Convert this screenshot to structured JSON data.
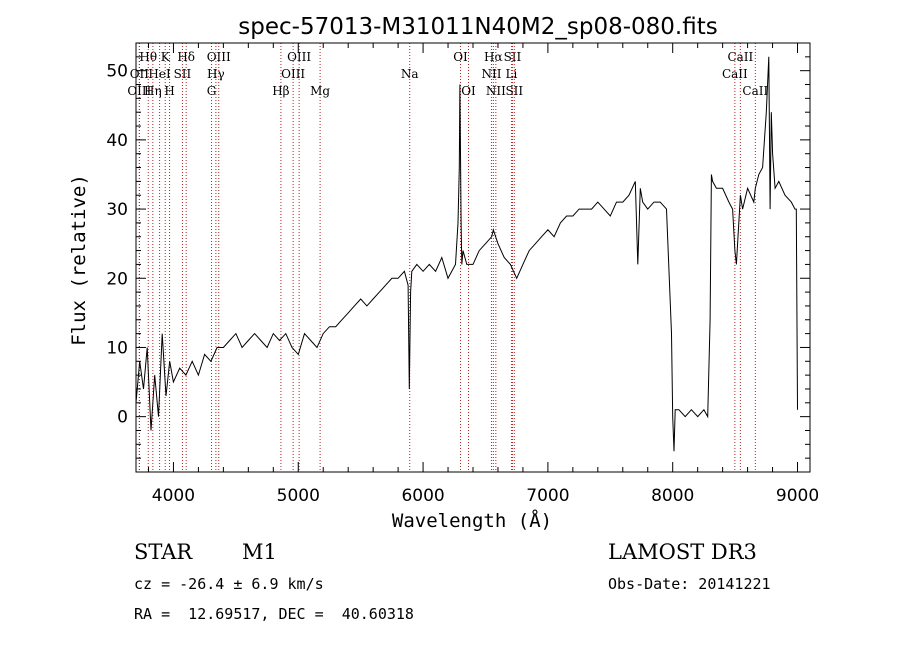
{
  "chart_data": {
    "type": "line",
    "title": "spec-57013-M31011N40M2_sp08-080.fits",
    "xlabel": "Wavelength (Å)",
    "ylabel": "Flux (relative)",
    "xlim": [
      3700,
      9100
    ],
    "ylim": [
      -8,
      54
    ],
    "x_ticks": [
      4000,
      5000,
      6000,
      7000,
      8000,
      9000
    ],
    "y_ticks": [
      0,
      10,
      20,
      30,
      40,
      50
    ],
    "grid": false,
    "series": [
      {
        "x": [
          3700,
          3730,
          3760,
          3790,
          3820,
          3850,
          3880,
          3910,
          3940,
          3970,
          4000,
          4050,
          4100,
          4150,
          4200,
          4250,
          4300,
          4350,
          4400,
          4450,
          4500,
          4550,
          4600,
          4650,
          4700,
          4750,
          4800,
          4850,
          4900,
          4950,
          5000,
          5050,
          5100,
          5150,
          5200,
          5250,
          5300,
          5350,
          5400,
          5450,
          5500,
          5550,
          5600,
          5650,
          5700,
          5750,
          5800,
          5850,
          5880,
          5890,
          5900,
          5910,
          5950,
          6000,
          6050,
          6100,
          6150,
          6200,
          6230,
          6260,
          6280,
          6290,
          6295,
          6300,
          6305,
          6310,
          6320,
          6350,
          6400,
          6450,
          6500,
          6550,
          6563,
          6600,
          6650,
          6700,
          6750,
          6800,
          6850,
          6900,
          6950,
          7000,
          7050,
          7100,
          7150,
          7200,
          7250,
          7300,
          7350,
          7400,
          7450,
          7500,
          7550,
          7600,
          7650,
          7700,
          7720,
          7740,
          7760,
          7800,
          7850,
          7900,
          7950,
          7990,
          8000,
          8010,
          8020,
          8050,
          8100,
          8150,
          8200,
          8250,
          8280,
          8300,
          8310,
          8320,
          8350,
          8400,
          8450,
          8480,
          8498,
          8510,
          8542,
          8560,
          8600,
          8650,
          8662,
          8690,
          8720,
          8750,
          8770,
          8780,
          8790,
          8800,
          8820,
          8850,
          8900,
          8950,
          8980,
          8990,
          9000
        ],
        "y": [
          2,
          8,
          4,
          10,
          -2,
          6,
          0,
          12,
          3,
          8,
          5,
          7,
          6,
          8,
          6,
          9,
          8,
          10,
          10,
          11,
          12,
          10,
          11,
          12,
          11,
          10,
          12,
          11,
          12,
          10,
          9,
          12,
          11,
          10,
          12,
          13,
          13,
          14,
          15,
          16,
          17,
          16,
          17,
          18,
          19,
          20,
          20,
          21,
          19,
          4,
          18,
          21,
          22,
          21,
          22,
          21,
          23,
          20,
          21,
          22,
          28,
          36,
          48,
          38,
          28,
          22,
          24,
          22,
          22,
          24,
          25,
          26,
          27,
          25,
          23,
          22,
          20,
          22,
          24,
          25,
          26,
          27,
          26,
          28,
          29,
          29,
          30,
          30,
          30,
          31,
          30,
          29,
          31,
          31,
          32,
          34,
          22,
          33,
          31,
          30,
          31,
          31,
          30,
          12,
          0,
          -5,
          1,
          1,
          0,
          1,
          0,
          1,
          0,
          14,
          35,
          34,
          33,
          33,
          31,
          30,
          24,
          22,
          32,
          30,
          33,
          31,
          33,
          35,
          36,
          44,
          52,
          30,
          44,
          38,
          33,
          34,
          32,
          31,
          30,
          30,
          1
        ]
      }
    ],
    "line_markers": [
      {
        "label": "Hθ",
        "wavelength": 3798,
        "row": 1
      },
      {
        "label": "OII",
        "wavelength": 3727,
        "row": 2
      },
      {
        "label": "OIII",
        "wavelength": 3727,
        "row": 3
      },
      {
        "label": "K",
        "wavelength": 3934,
        "row": 1
      },
      {
        "label": "H",
        "wavelength": 3969,
        "row": 3
      },
      {
        "label": "HeI",
        "wavelength": 3889,
        "row": 2
      },
      {
        "label": "Hη",
        "wavelength": 3835,
        "row": 3
      },
      {
        "label": "SII",
        "wavelength": 4072,
        "row": 2
      },
      {
        "label": "Hδ",
        "wavelength": 4102,
        "row": 1
      },
      {
        "label": "OIII",
        "wavelength": 4363,
        "row": 1
      },
      {
        "label": "Hγ",
        "wavelength": 4340,
        "row": 2
      },
      {
        "label": "G",
        "wavelength": 4305,
        "row": 3
      },
      {
        "label": "Hβ",
        "wavelength": 4861,
        "row": 3
      },
      {
        "label": "OIII",
        "wavelength": 4959,
        "row": 2
      },
      {
        "label": "OIII",
        "wavelength": 5007,
        "row": 1
      },
      {
        "label": "Mg",
        "wavelength": 5175,
        "row": 3
      },
      {
        "label": "Na",
        "wavelength": 5893,
        "row": 2
      },
      {
        "label": "OI",
        "wavelength": 6300,
        "row": 1
      },
      {
        "label": "OI",
        "wavelength": 6364,
        "row": 3
      },
      {
        "label": "Hα",
        "wavelength": 6563,
        "row": 1
      },
      {
        "label": "NII",
        "wavelength": 6548,
        "row": 2
      },
      {
        "label": "NII",
        "wavelength": 6583,
        "row": 3
      },
      {
        "label": "SII",
        "wavelength": 6716,
        "row": 1
      },
      {
        "label": "Li",
        "wavelength": 6708,
        "row": 2
      },
      {
        "label": "SII",
        "wavelength": 6731,
        "row": 3
      },
      {
        "label": "CaII",
        "wavelength": 8542,
        "row": 1
      },
      {
        "label": "CaII",
        "wavelength": 8498,
        "row": 2
      },
      {
        "label": "CaII",
        "wavelength": 8662,
        "row": 3
      }
    ]
  },
  "colors": {
    "spectrum": "#000000",
    "marker_lines": "#b22222"
  },
  "info": {
    "object_class": "STAR",
    "subclass": "M1",
    "survey": "LAMOST DR3",
    "redshift": "cz = -26.4 ± 6.9 km/s",
    "obs_date": "Obs-Date: 20141221",
    "coordinates": "RA =  12.69517, DEC =  40.60318"
  }
}
